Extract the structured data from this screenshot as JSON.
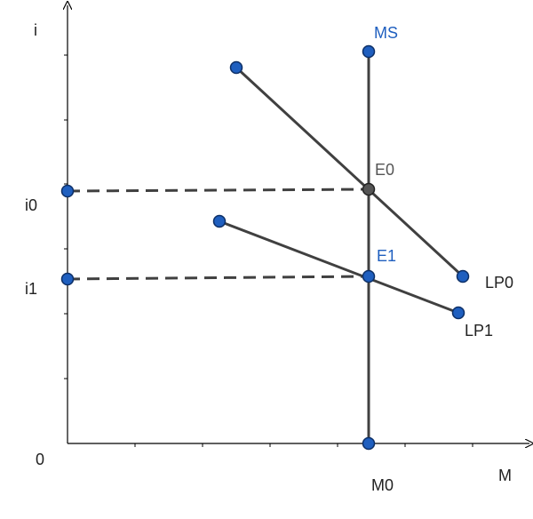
{
  "colors": {
    "axis": "#000000",
    "line": "#404040",
    "point_fill": "#1f5fbf",
    "point_stroke": "#0d2f66",
    "equilibrium0_fill": "#555555",
    "label_blue": "#1f5fbf",
    "label_dark": "#222222",
    "label_gray": "#555555"
  },
  "axes": {
    "y_label": "i",
    "x_label": "M",
    "origin_label": "0"
  },
  "labels": {
    "ms": "MS",
    "e0": "E0",
    "e1": "E1",
    "lp0": "LP0",
    "lp1": "LP1",
    "i0": "i0",
    "i1": "i1",
    "m0": "M0"
  }
}
